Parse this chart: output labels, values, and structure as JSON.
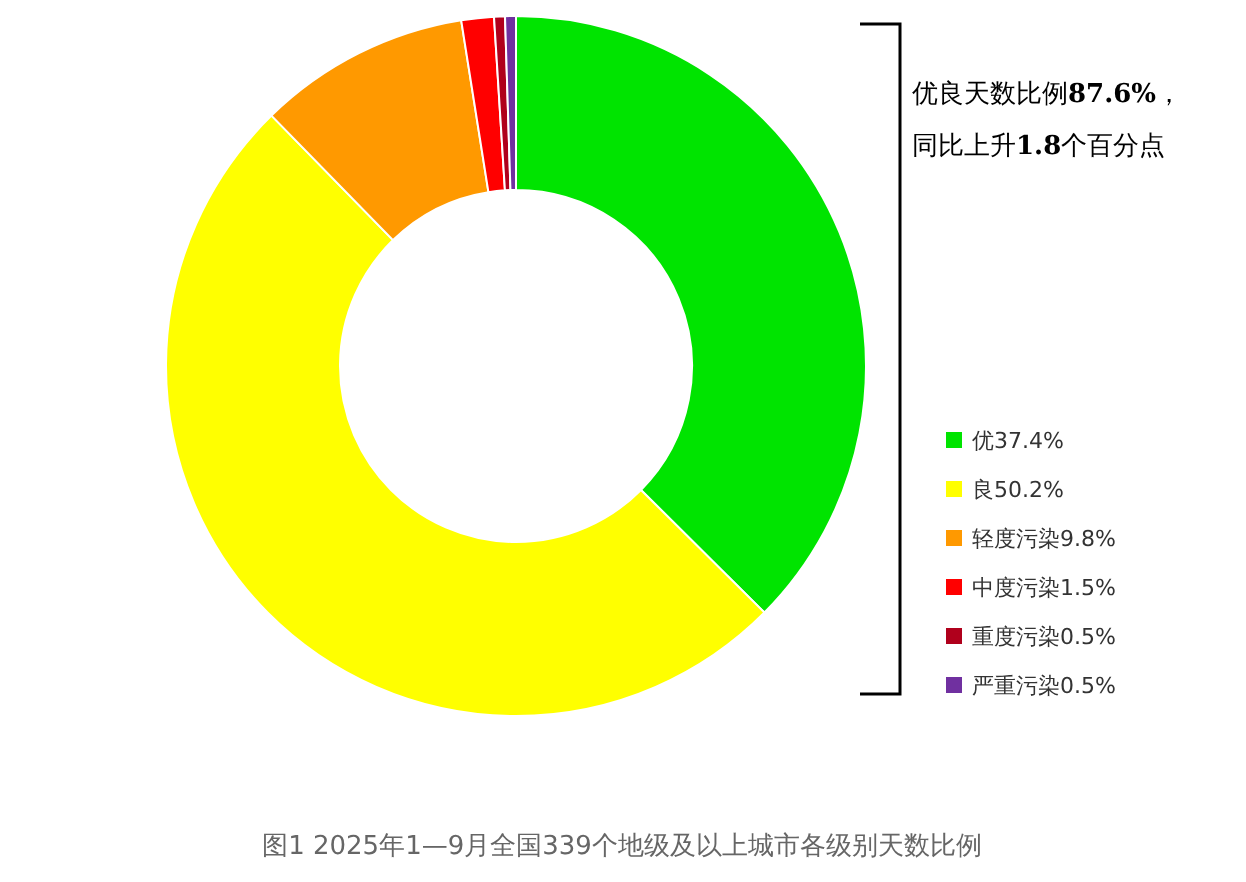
{
  "chart_data": {
    "type": "donut",
    "categories": [
      "优37.4%",
      "良50.2%",
      "轻度污染9.8%",
      "中度污染1.5%",
      "重度污染0.5%",
      "严重污染0.5%"
    ],
    "values": [
      37.4,
      50.2,
      9.8,
      1.5,
      0.5,
      0.5
    ],
    "colors": [
      "#00e400",
      "#ffff00",
      "#ff9900",
      "#ff0000",
      "#b0001c",
      "#7030a0"
    ],
    "legend": "bottom right",
    "annotations": [
      "优良天数比例87.6%，",
      "同比上升1.8个百分点",
      "图1  2025年1—9月全国339个地级及以上城市各级别天数比例"
    ]
  }
}
